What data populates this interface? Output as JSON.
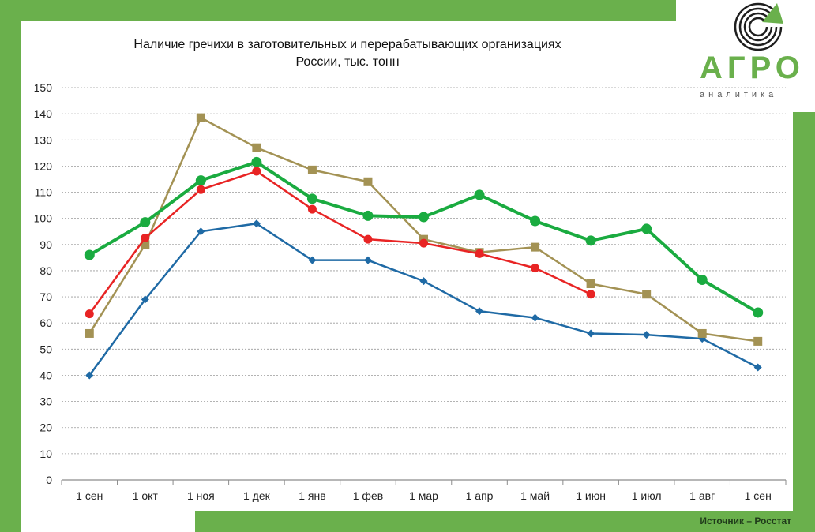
{
  "title": "Наличие гречихи в заготовительных и перерабатывающих организациях России, тыс. тонн",
  "logo": {
    "name": "АГРО",
    "sub": "аналитика"
  },
  "source": "Источник – Росстат",
  "chart_data": {
    "type": "line",
    "title": "Наличие гречихи в заготовительных и перерабатывающих организациях России, тыс. тонн",
    "categories": [
      "1 сен",
      "1 окт",
      "1 ноя",
      "1 дек",
      "1 янв",
      "1 фев",
      "1 мар",
      "1 апр",
      "1 май",
      "1 июн",
      "1 июл",
      "1 авг",
      "1 сен"
    ],
    "ylim": [
      0,
      150
    ],
    "yticks": [
      0,
      10,
      20,
      30,
      40,
      50,
      60,
      70,
      80,
      90,
      100,
      110,
      120,
      130,
      140,
      150
    ],
    "grid": true,
    "series": [
      {
        "color": "#1f6aa5",
        "marker": "diamond",
        "values": [
          40,
          69,
          95,
          98,
          84,
          84,
          76,
          64.5,
          62,
          56,
          55.5,
          54,
          43
        ]
      },
      {
        "color": "#a39254",
        "marker": "square",
        "values": [
          56,
          90,
          138.5,
          127,
          118.5,
          114,
          92,
          87,
          89,
          75,
          71,
          56,
          53
        ]
      },
      {
        "color": "#e82424",
        "marker": "circle",
        "values": [
          63.5,
          92.5,
          111,
          118,
          103.5,
          92,
          90.5,
          86.5,
          81,
          71,
          null,
          null,
          null
        ]
      },
      {
        "color": "#1aab40",
        "marker": "circle",
        "values": [
          86,
          98.5,
          114.5,
          121.5,
          107.5,
          101,
          100.5,
          109,
          99,
          91.5,
          96,
          76.5,
          64
        ]
      }
    ]
  }
}
